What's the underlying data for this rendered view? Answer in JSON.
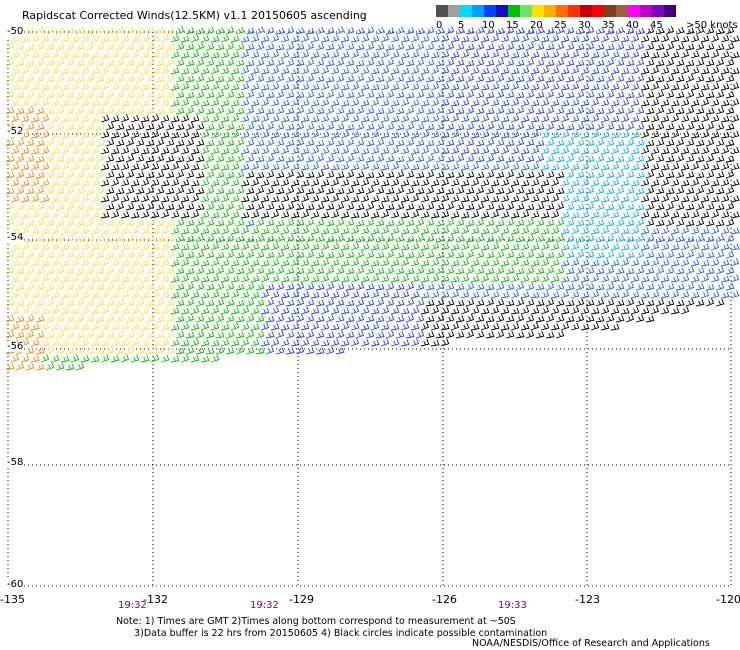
{
  "title": "Rapidscat Corrected Winds(12.5KM) v1.1 20150605 ascending",
  "legend": {
    "colors": [
      "#505050",
      "#a0a0a0",
      "#00d8ff",
      "#00a0ff",
      "#0040ff",
      "#1010c0",
      "#00c000",
      "#70e070",
      "#ffe000",
      "#ffb000",
      "#ff7000",
      "#ff3000",
      "#c00000",
      "#ff0000",
      "#804020",
      "#a06040",
      "#ff00ff",
      "#c000c0",
      "#8000c0",
      "#400080"
    ],
    "labels": [
      "0",
      "5",
      "10",
      "15",
      "20",
      "25",
      "30",
      "35",
      "40",
      "45",
      ">50 knots"
    ]
  },
  "map": {
    "lon_range": [
      -135,
      -120
    ],
    "lat_range": [
      -60,
      -50
    ],
    "lat_labels": [
      "-50",
      "-52",
      "-54",
      "-56",
      "-58",
      "-60"
    ],
    "lon_labels": [
      "-135",
      "-132",
      "-129",
      "-126",
      "-123",
      "-120"
    ],
    "time_labels": [
      "19:32",
      "19:32",
      "19:33"
    ]
  },
  "notes": [
    "Note: 1) Times are GMT 2)Times along bottom correspond to measurement at ~50S",
    "      3)Data buffer is 22 hrs from 20150605 4) Black circles indicate possible contamination"
  ],
  "credit": "NOAA/NESDIS/Office of Research and Applications"
}
